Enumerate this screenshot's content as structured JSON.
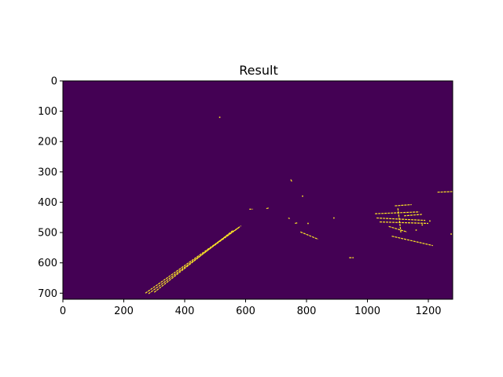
{
  "chart_data": {
    "type": "image",
    "title": "Result",
    "xlabel": "",
    "ylabel": "",
    "xlim": [
      0,
      1280
    ],
    "ylim": [
      720,
      0
    ],
    "xticks": [
      0,
      200,
      400,
      600,
      800,
      1000,
      1200
    ],
    "yticks": [
      0,
      100,
      200,
      300,
      400,
      500,
      600,
      700
    ],
    "colors": {
      "background": "#440154",
      "edges": "#fde725"
    },
    "edge_segments": [
      {
        "name": "left-lane-line-a",
        "x": [
          271,
          585
        ],
        "y": [
          700,
          478
        ]
      },
      {
        "name": "left-lane-line-b",
        "x": [
          281,
          580
        ],
        "y": [
          702,
          482
        ]
      },
      {
        "name": "left-lane-line-c",
        "x": [
          300,
          560
        ],
        "y": [
          697,
          492
        ]
      },
      {
        "name": "center-mark-1",
        "x": [
          780,
          838
        ],
        "y": [
          498,
          522
        ]
      },
      {
        "name": "center-mark-2",
        "x": [
          762,
          770
        ],
        "y": [
          470,
          468
        ]
      },
      {
        "name": "center-mark-3",
        "x": [
          612,
          624
        ],
        "y": [
          423,
          423
        ]
      },
      {
        "name": "center-mark-4",
        "x": [
          668,
          676
        ],
        "y": [
          421,
          419
        ]
      },
      {
        "name": "center-mark-5",
        "x": [
          748,
          752
        ],
        "y": [
          325,
          332
        ]
      },
      {
        "name": "center-mark-6",
        "x": [
          740,
          745
        ],
        "y": [
          452,
          454
        ]
      },
      {
        "name": "right-lane-fragment",
        "x": [
          1080,
          1215
        ],
        "y": [
          512,
          543
        ]
      },
      {
        "name": "right-cluster-1",
        "x": [
          1025,
          1170
        ],
        "y": [
          438,
          432
        ]
      },
      {
        "name": "right-cluster-2",
        "x": [
          1030,
          1190
        ],
        "y": [
          452,
          460
        ]
      },
      {
        "name": "right-cluster-3",
        "x": [
          1040,
          1200
        ],
        "y": [
          465,
          470
        ]
      },
      {
        "name": "right-cluster-4",
        "x": [
          1070,
          1130
        ],
        "y": [
          480,
          498
        ]
      },
      {
        "name": "right-cluster-5",
        "x": [
          1090,
          1145
        ],
        "y": [
          412,
          408
        ]
      },
      {
        "name": "right-cluster-6",
        "x": [
          1100,
          1110
        ],
        "y": [
          420,
          500
        ]
      },
      {
        "name": "right-cluster-7",
        "x": [
          1230,
          1280
        ],
        "y": [
          367,
          365
        ]
      },
      {
        "name": "right-cluster-8",
        "x": [
          1120,
          1180
        ],
        "y": [
          445,
          440
        ]
      },
      {
        "name": "lower-mark",
        "x": [
          940,
          955
        ],
        "y": [
          583,
          583
        ]
      }
    ],
    "edge_dots": [
      {
        "x": 515,
        "y": 120
      },
      {
        "x": 787,
        "y": 380
      },
      {
        "x": 890,
        "y": 452
      },
      {
        "x": 805,
        "y": 470
      },
      {
        "x": 1275,
        "y": 505
      },
      {
        "x": 1180,
        "y": 475
      },
      {
        "x": 1205,
        "y": 462
      },
      {
        "x": 1160,
        "y": 492
      }
    ]
  }
}
